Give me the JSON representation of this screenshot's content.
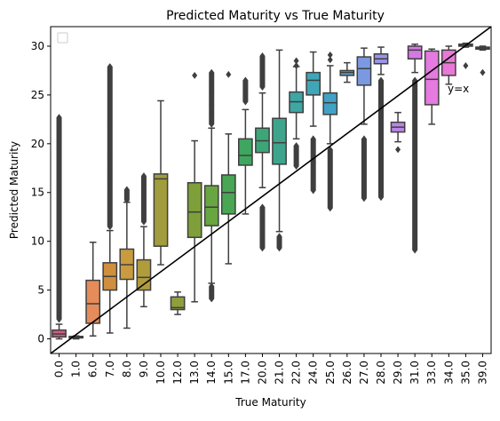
{
  "chart_data": {
    "type": "box",
    "title": "Predicted Maturity vs True Maturity",
    "xlabel": "True Maturity",
    "ylabel": "Predicted Maturity",
    "ylim": [
      -1.5,
      32
    ],
    "yticks": [
      0,
      5,
      10,
      15,
      20,
      25,
      30
    ],
    "categories": [
      "0.0",
      "1.0",
      "6.0",
      "7.0",
      "8.0",
      "9.0",
      "10.0",
      "12.0",
      "13.0",
      "14.0",
      "15.0",
      "17.0",
      "20.0",
      "21.0",
      "22.0",
      "24.0",
      "25.0",
      "26.0",
      "27.0",
      "28.0",
      "29.0",
      "31.0",
      "33.0",
      "34.0",
      "35.0",
      "39.0"
    ],
    "boxes": [
      {
        "q1": 0.2,
        "median": 0.5,
        "q3": 0.9,
        "wmin": 0.0,
        "wmax": 1.5,
        "color": "#c85d80",
        "outliers_lo": [],
        "outliers_hi": [
          2,
          3,
          4,
          5,
          6,
          7,
          8,
          9,
          10,
          11,
          12,
          13,
          14,
          15,
          16,
          17,
          18,
          19,
          22.7
        ],
        "outlier_band": true
      },
      {
        "q1": 0.1,
        "median": 0.15,
        "q3": 0.25,
        "wmin": 0.0,
        "wmax": 0.3,
        "color": "#d7844e",
        "outliers_lo": [],
        "outliers_hi": [],
        "outlier_band": false
      },
      {
        "q1": 1.6,
        "median": 3.6,
        "q3": 6.0,
        "wmin": 0.3,
        "wmax": 9.9,
        "color": "#e58c5a",
        "outliers_lo": [],
        "outliers_hi": [],
        "outlier_band": false
      },
      {
        "q1": 5.0,
        "median": 6.4,
        "q3": 7.8,
        "wmin": 0.6,
        "wmax": 11.1,
        "color": "#cf8f3e",
        "outliers_lo": [],
        "outliers_hi": [
          11.5,
          12,
          13,
          14,
          15,
          16,
          17,
          18.5,
          22.2,
          27.9
        ],
        "outlier_band": true
      },
      {
        "q1": 6.1,
        "median": 7.6,
        "q3": 9.2,
        "wmin": 1.1,
        "wmax": 14.0,
        "color": "#c99b3e",
        "outliers_lo": [],
        "outliers_hi": [
          14.2,
          14.6,
          15.0,
          15.3
        ],
        "outlier_band": true
      },
      {
        "q1": 5.0,
        "median": 6.3,
        "q3": 8.1,
        "wmin": 3.3,
        "wmax": 11.5,
        "color": "#b19c3d",
        "outliers_lo": [],
        "outliers_hi": [
          12,
          13,
          14,
          15,
          16,
          16.7
        ],
        "outlier_band": true
      },
      {
        "q1": 9.5,
        "median": 16.4,
        "q3": 16.9,
        "wmin": 7.6,
        "wmax": 24.4,
        "color": "#a19c3c",
        "outliers_lo": [],
        "outliers_hi": [],
        "outlier_band": false
      },
      {
        "q1": 3.0,
        "median": 3.2,
        "q3": 4.3,
        "wmin": 2.5,
        "wmax": 4.8,
        "color": "#8ea03c",
        "outliers_lo": [],
        "outliers_hi": [],
        "outlier_band": false
      },
      {
        "q1": 10.4,
        "median": 13.0,
        "q3": 16.0,
        "wmin": 3.8,
        "wmax": 20.3,
        "color": "#7e9f3a",
        "outliers_lo": [],
        "outliers_hi": [
          27.0
        ],
        "outlier_band": false
      },
      {
        "q1": 11.6,
        "median": 13.5,
        "q3": 15.7,
        "wmin": 5.7,
        "wmax": 21.6,
        "color": "#67a641",
        "outliers_lo": [
          4.1,
          4.5,
          5.0,
          5.4
        ],
        "outliers_hi": [
          22,
          23,
          24,
          25.3,
          27.3
        ],
        "outlier_band": true
      },
      {
        "q1": 12.8,
        "median": 15.0,
        "q3": 16.8,
        "wmin": 7.7,
        "wmax": 21.0,
        "color": "#49a654",
        "outliers_lo": [],
        "outliers_hi": [
          27.1
        ],
        "outlier_band": false
      },
      {
        "q1": 17.8,
        "median": 18.8,
        "q3": 20.5,
        "wmin": 12.8,
        "wmax": 23.5,
        "color": "#3ea65f",
        "outliers_lo": [],
        "outliers_hi": [
          24.3,
          25.0,
          25.8,
          26.5
        ],
        "outlier_band": true
      },
      {
        "q1": 19.1,
        "median": 20.3,
        "q3": 21.6,
        "wmin": 15.5,
        "wmax": 25.2,
        "color": "#3ca678",
        "outliers_lo": [
          9.3,
          10,
          11,
          12,
          13.5
        ],
        "outliers_hi": [
          25.8,
          26.5,
          27.2,
          28,
          29.0
        ],
        "outlier_band": true
      },
      {
        "q1": 17.9,
        "median": 20.1,
        "q3": 22.6,
        "wmin": 11.0,
        "wmax": 29.6,
        "color": "#3ea58c",
        "outliers_lo": [
          9.3,
          10.0,
          10.5
        ],
        "outliers_hi": [],
        "outlier_band": true
      },
      {
        "q1": 23.2,
        "median": 24.3,
        "q3": 25.3,
        "wmin": 20.5,
        "wmax": 27.9,
        "color": "#3ea6a3",
        "outliers_lo": [
          17.7,
          18.5,
          19.2,
          19.8
        ],
        "outliers_hi": [
          28.0,
          28.5
        ],
        "outlier_band": true
      },
      {
        "q1": 25.0,
        "median": 26.5,
        "q3": 27.3,
        "wmin": 21.8,
        "wmax": 29.4,
        "color": "#3fa6b7",
        "outliers_lo": [
          15.2,
          16.1,
          17.0,
          18.0,
          19.2,
          20.5
        ],
        "outliers_hi": [],
        "outlier_band": true
      },
      {
        "q1": 23.0,
        "median": 24.2,
        "q3": 25.2,
        "wmin": 20.0,
        "wmax": 28.0,
        "color": "#42a2c6",
        "outliers_lo": [
          13.4,
          17.6,
          19.4
        ],
        "outliers_hi": [
          28.6,
          29.1
        ],
        "outlier_band": true
      },
      {
        "q1": 27.0,
        "median": 27.3,
        "q3": 27.5,
        "wmin": 26.3,
        "wmax": 28.3,
        "color": "#57a0cc",
        "outliers_lo": [],
        "outliers_hi": [],
        "outlier_band": false
      },
      {
        "q1": 26.0,
        "median": 27.7,
        "q3": 28.9,
        "wmin": 22.0,
        "wmax": 29.8,
        "color": "#7b99e1",
        "outliers_lo": [
          14.4,
          16.8,
          18.1,
          19.5,
          20.5
        ],
        "outliers_hi": [],
        "outlier_band": true
      },
      {
        "q1": 28.2,
        "median": 28.7,
        "q3": 29.2,
        "wmin": 27.1,
        "wmax": 29.9,
        "color": "#9b94e8",
        "outliers_lo": [
          14.5,
          15,
          16,
          17,
          18,
          19,
          20,
          21,
          22,
          23,
          24,
          25,
          26.5
        ],
        "outliers_hi": [],
        "outlier_band": true
      },
      {
        "q1": 21.2,
        "median": 21.7,
        "q3": 22.2,
        "wmin": 20.2,
        "wmax": 23.2,
        "color": "#ba86e6",
        "outliers_lo": [
          19.4
        ],
        "outliers_hi": [],
        "outlier_band": false
      },
      {
        "q1": 28.7,
        "median": 29.6,
        "q3": 30.0,
        "wmin": 27.3,
        "wmax": 30.2,
        "color": "#d479e2",
        "outliers_lo": [
          9.1,
          22.5,
          23.5,
          24.5,
          25.5,
          26.5
        ],
        "outliers_hi": [],
        "outlier_band": true
      },
      {
        "q1": 24.0,
        "median": 26.6,
        "q3": 29.5,
        "wmin": 22.0,
        "wmax": 29.7,
        "color": "#e57ae0",
        "outliers_lo": [],
        "outliers_hi": [],
        "outlier_band": false
      },
      {
        "q1": 27.0,
        "median": 28.3,
        "q3": 29.6,
        "wmin": 26.1,
        "wmax": 30.0,
        "color": "#e879d6",
        "outliers_lo": [],
        "outliers_hi": [],
        "outlier_band": false
      },
      {
        "q1": 30.0,
        "median": 30.1,
        "q3": 30.2,
        "wmin": 29.9,
        "wmax": 30.3,
        "color": "#d06fbc",
        "outliers_lo": [
          28.0
        ],
        "outliers_hi": [],
        "outlier_band": false
      },
      {
        "q1": 29.7,
        "median": 29.8,
        "q3": 29.9,
        "wmin": 29.6,
        "wmax": 30.0,
        "color": "#c77ac0",
        "outliers_lo": [
          27.3
        ],
        "outliers_hi": [],
        "outlier_band": false
      }
    ],
    "reference_line": {
      "label": "y=x",
      "color": "#000000"
    },
    "legend": {
      "placement": "top-left",
      "entries": []
    },
    "grid": false
  }
}
